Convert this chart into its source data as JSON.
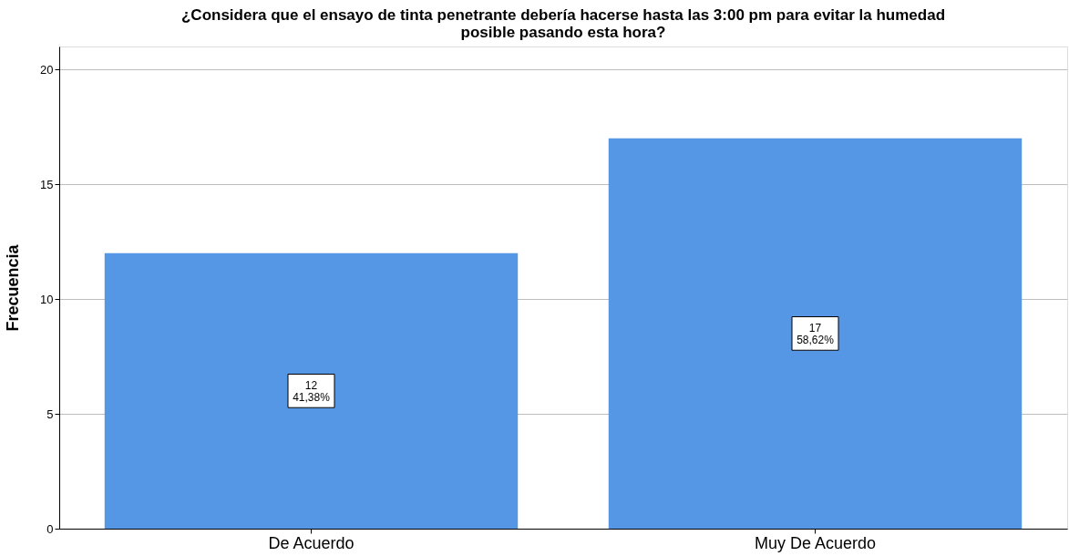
{
  "chart_data": {
    "type": "bar",
    "title": [
      "¿Considera que el ensayo de tinta penetrante debería hacerse hasta las 3:00 pm para evitar la humedad",
      "posible pasando esta hora?"
    ],
    "ylabel": "Frecuencia",
    "categories": [
      "De Acuerdo",
      "Muy De Acuerdo"
    ],
    "values": [
      12,
      17
    ],
    "value_labels": [
      "12\n41,38%",
      "17\n58,62%"
    ],
    "color": "#5596e5",
    "ylim": [
      0,
      21
    ],
    "yticks": [
      0,
      5,
      10,
      15,
      20
    ],
    "grid": "y"
  }
}
